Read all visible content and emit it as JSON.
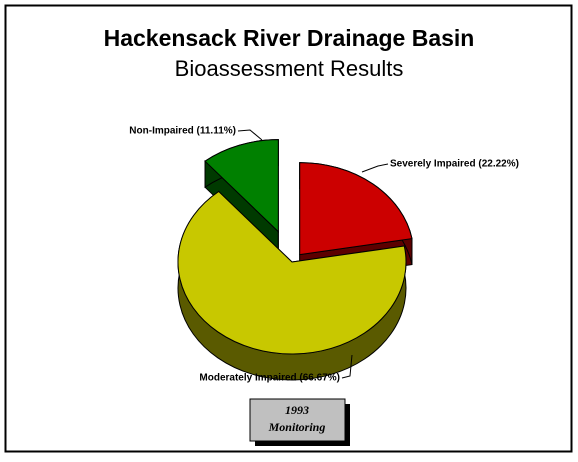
{
  "chart_data": {
    "type": "pie3d",
    "title": "Hackensack River Drainage Basin",
    "subtitle": "Bioassessment Results",
    "values": [
      22.22,
      66.67,
      11.11
    ],
    "value_labels": [
      "Severely Impaired (22.22%)",
      "Moderately Impaired (66.67%)",
      "Non-Impaired (11.11%)"
    ],
    "colors": [
      "#cc0000",
      "#c8c800",
      "#008000"
    ],
    "annotation": [
      "1993",
      "Monitoring"
    ]
  }
}
